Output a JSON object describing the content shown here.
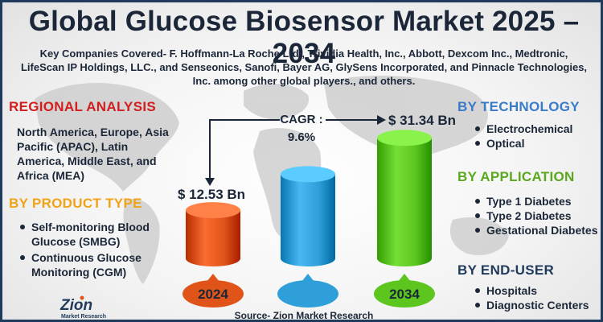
{
  "title": "Global Glucose Biosensor Market 2025 –2034",
  "companies": "Key Companies Covered- F. Hoffmann-La Roche Ltd., Trividia Health, Inc., Abbott, Dexcom Inc., Medtronic, LifeScan IP Holdings, LLC., and Senseonics, Sanofi, Bayer AG, GlySens Incorporated, and Pinnacle Technologies, Inc. among other global players., and others.",
  "regional": {
    "title": "REGIONAL ANALYSIS",
    "text": "North America, Europe, Asia Pacific (APAC), Latin America, Middle East, and Africa (MEA)"
  },
  "product_type": {
    "title": "BY PRODUCT TYPE",
    "items": [
      "Self-monitoring Blood Glucose (SMBG)",
      "Continuous Glucose Monitoring (CGM)"
    ]
  },
  "technology": {
    "title": "BY TECHNOLOGY",
    "items": [
      "Electrochemical",
      "Optical"
    ]
  },
  "application": {
    "title": "BY APPLICATION",
    "items": [
      "Type 1 Diabetes",
      "Type 2 Diabetes",
      "Gestational Diabetes"
    ]
  },
  "end_user": {
    "title": "BY END-USER",
    "items": [
      "Hospitals",
      "Diagnostic Centers"
    ]
  },
  "source": "Source- Zion Market Research",
  "logo": {
    "name": "Zion",
    "sub": "Market Research"
  },
  "colors": {
    "red_cylinder": "#e0541a",
    "blue_cylinder": "#2e9fd8",
    "green_cylinder": "#5cc61e",
    "navy": "#1f3a5a",
    "regional_title": "#d21e1e",
    "product_title": "#f0a318",
    "tech_title": "#3a7bc8",
    "app_title": "#5aa81e"
  },
  "chart_data": {
    "type": "bar",
    "categories": [
      "2024",
      "",
      "2034"
    ],
    "values": [
      12.53,
      21.9,
      31.34
    ],
    "data_labels": [
      "$ 12.53 Bn",
      "",
      "$ 31.34 Bn"
    ],
    "cagr_label": "CAGR :",
    "cagr_value": "9.6%",
    "ylim": [
      0,
      35
    ]
  }
}
